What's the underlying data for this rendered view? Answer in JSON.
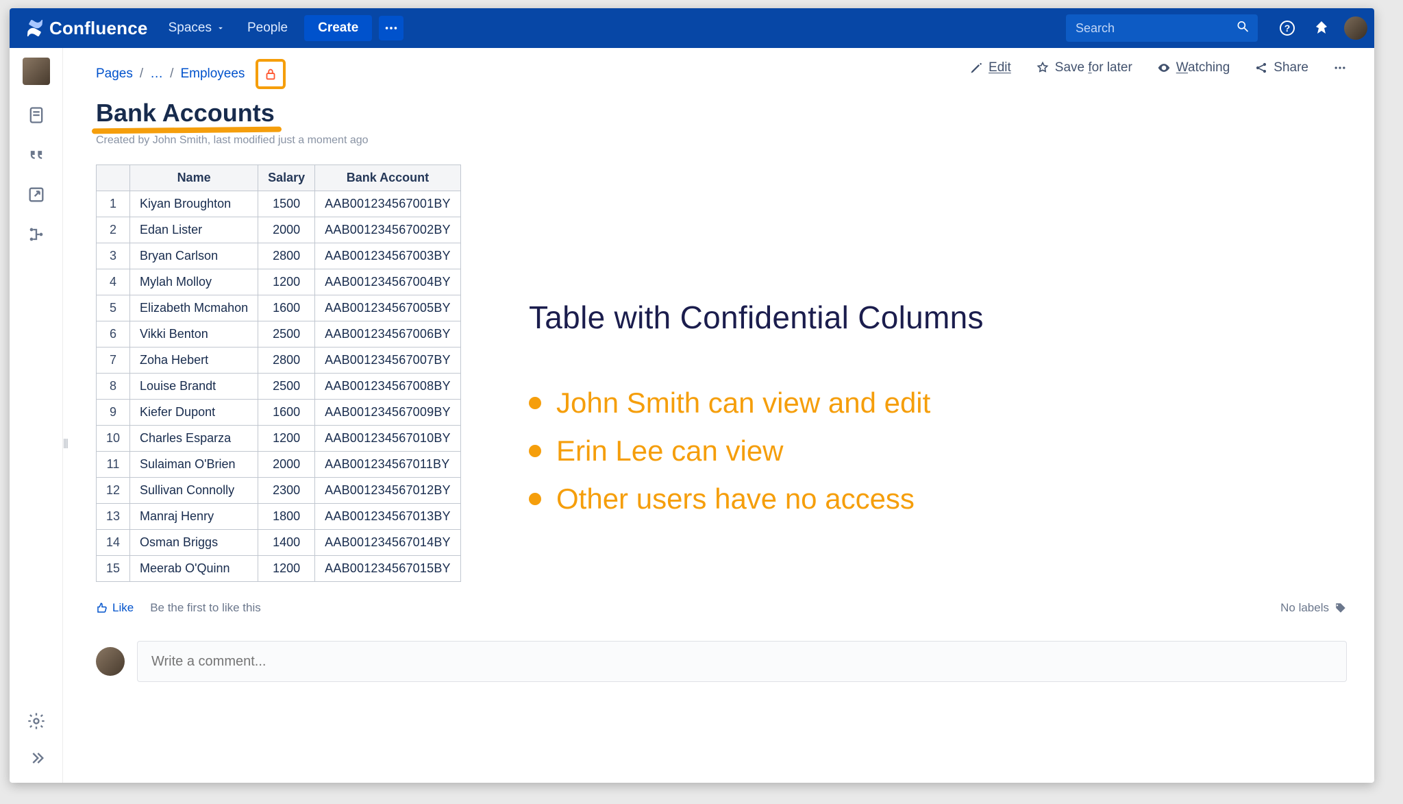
{
  "brand": "Confluence",
  "nav": {
    "spaces": "Spaces",
    "people": "People",
    "create": "Create"
  },
  "search": {
    "placeholder": "Search"
  },
  "breadcrumbs": {
    "root": "Pages",
    "ellipsis": "…",
    "parent": "Employees"
  },
  "actions": {
    "edit": "Edit",
    "save": "Save for later",
    "watch": "Watching",
    "share": "Share"
  },
  "page": {
    "title": "Bank Accounts",
    "byline": "Created by John Smith, last modified just a moment ago"
  },
  "table": {
    "columns": [
      "",
      "Name",
      "Salary",
      "Bank Account"
    ],
    "rows": [
      [
        "1",
        "Kiyan Broughton",
        "1500",
        "AAB001234567001BY"
      ],
      [
        "2",
        "Edan Lister",
        "2000",
        "AAB001234567002BY"
      ],
      [
        "3",
        "Bryan Carlson",
        "2800",
        "AAB001234567003BY"
      ],
      [
        "4",
        "Mylah Molloy",
        "1200",
        "AAB001234567004BY"
      ],
      [
        "5",
        "Elizabeth Mcmahon",
        "1600",
        "AAB001234567005BY"
      ],
      [
        "6",
        "Vikki Benton",
        "2500",
        "AAB001234567006BY"
      ],
      [
        "7",
        "Zoha Hebert",
        "2800",
        "AAB001234567007BY"
      ],
      [
        "8",
        "Louise Brandt",
        "2500",
        "AAB001234567008BY"
      ],
      [
        "9",
        "Kiefer Dupont",
        "1600",
        "AAB001234567009BY"
      ],
      [
        "10",
        "Charles Esparza",
        "1200",
        "AAB001234567010BY"
      ],
      [
        "11",
        "Sulaiman O'Brien",
        "2000",
        "AAB001234567011BY"
      ],
      [
        "12",
        "Sullivan Connolly",
        "2300",
        "AAB001234567012BY"
      ],
      [
        "13",
        "Manraj Henry",
        "1800",
        "AAB001234567013BY"
      ],
      [
        "14",
        "Osman Briggs",
        "1400",
        "AAB001234567014BY"
      ],
      [
        "15",
        "Meerab O'Quinn",
        "1200",
        "AAB001234567015BY"
      ]
    ]
  },
  "like": {
    "label": "Like",
    "hint": "Be the first to like this"
  },
  "labels": {
    "none": "No labels"
  },
  "comment": {
    "placeholder": "Write a comment..."
  },
  "annotation": {
    "title": "Table with Confidential Columns",
    "bullets": [
      "John Smith can view and edit",
      "Erin Lee can view",
      "Other users have no access"
    ]
  },
  "colors": {
    "navbar": "#0747a6",
    "primary": "#0052cc",
    "highlight": "#f59e0b",
    "lock": "#ff5630",
    "text": "#172b4d",
    "muted": "#6b778c",
    "border": "#c1c7d0",
    "annot_title": "#1b1d4d"
  }
}
